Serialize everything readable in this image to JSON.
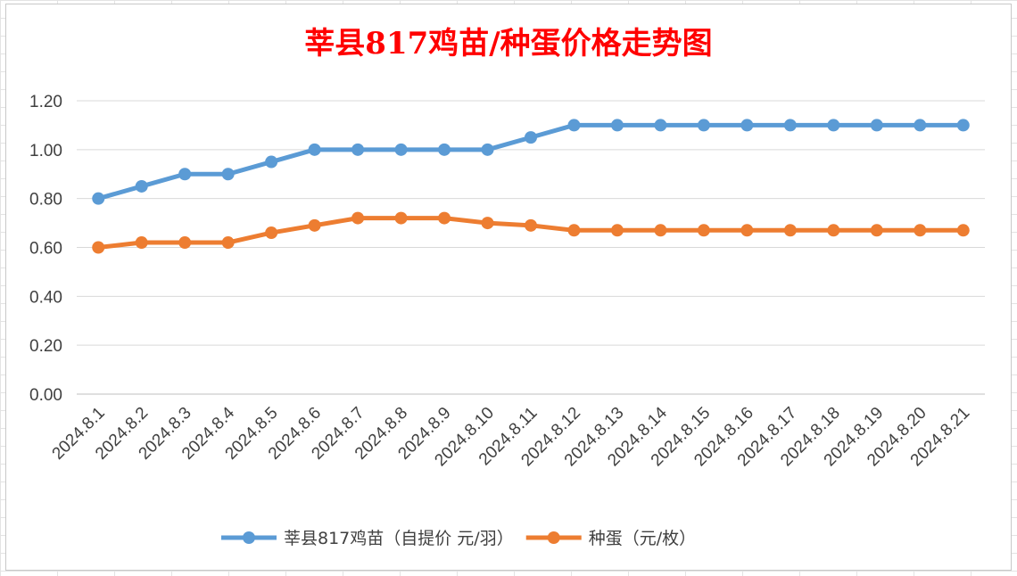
{
  "chart_data": {
    "type": "line",
    "title": "莘县817鸡苗/种蛋价格走势图",
    "xlabel": "",
    "ylabel": "",
    "categories": [
      "2024.8.1",
      "2024.8.2",
      "2024.8.3",
      "2024.8.4",
      "2024.8.5",
      "2024.8.6",
      "2024.8.7",
      "2024.8.8",
      "2024.8.9",
      "2024.8.10",
      "2024.8.11",
      "2024.8.12",
      "2024.8.13",
      "2024.8.14",
      "2024.8.15",
      "2024.8.16",
      "2024.8.17",
      "2024.8.18",
      "2024.8.19",
      "2024.8.20",
      "2024.8.21"
    ],
    "ylim": [
      0,
      1.2
    ],
    "yticks": [
      "0.00",
      "0.20",
      "0.40",
      "0.60",
      "0.80",
      "1.00",
      "1.20"
    ],
    "grid": true,
    "legend_position": "bottom",
    "series": [
      {
        "name": "莘县817鸡苗（自提价 元/羽）",
        "color": "#5b9bd5",
        "values": [
          0.8,
          0.85,
          0.9,
          0.9,
          0.95,
          1.0,
          1.0,
          1.0,
          1.0,
          1.0,
          1.05,
          1.1,
          1.1,
          1.1,
          1.1,
          1.1,
          1.1,
          1.1,
          1.1,
          1.1,
          1.1
        ]
      },
      {
        "name": "种蛋（元/枚）",
        "color": "#ed7d31",
        "values": [
          0.6,
          0.62,
          0.62,
          0.62,
          0.66,
          0.69,
          0.72,
          0.72,
          0.72,
          0.7,
          0.69,
          0.67,
          0.67,
          0.67,
          0.67,
          0.67,
          0.67,
          0.67,
          0.67,
          0.67,
          0.67
        ]
      }
    ]
  }
}
